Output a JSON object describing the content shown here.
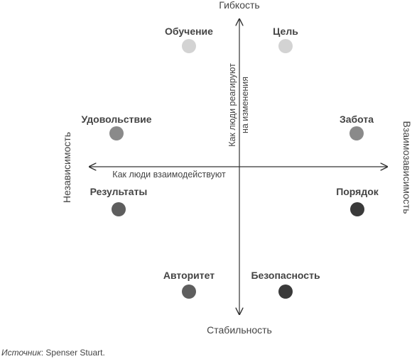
{
  "axes": {
    "top": "Гибкость",
    "bottom": "Стабильность",
    "left": "Независимость",
    "right": "Взаимозависимость",
    "horizontal_caption": "Как люди взаимодействуют",
    "vertical_caption_line1": "Как люди реагируют",
    "vertical_caption_line2": "на изменения"
  },
  "styles": [
    {
      "label": "Обучение",
      "level": 1
    },
    {
      "label": "Цель",
      "level": 1
    },
    {
      "label": "Удовольствие",
      "level": 2
    },
    {
      "label": "Забота",
      "level": 2
    },
    {
      "label": "Результаты",
      "level": 3
    },
    {
      "label": "Порядок",
      "level": 4
    },
    {
      "label": "Авторитет",
      "level": 3
    },
    {
      "label": "Безопасность",
      "level": 4
    }
  ],
  "colors": {
    "level1": "#d3d3d3",
    "level2": "#8a8a8a",
    "level3": "#5e5e5e",
    "level4": "#3a3a3a",
    "axis": "#333333",
    "text": "#444444"
  },
  "source": {
    "prefix": "Источник",
    "text": ": Spenser Stuart."
  }
}
